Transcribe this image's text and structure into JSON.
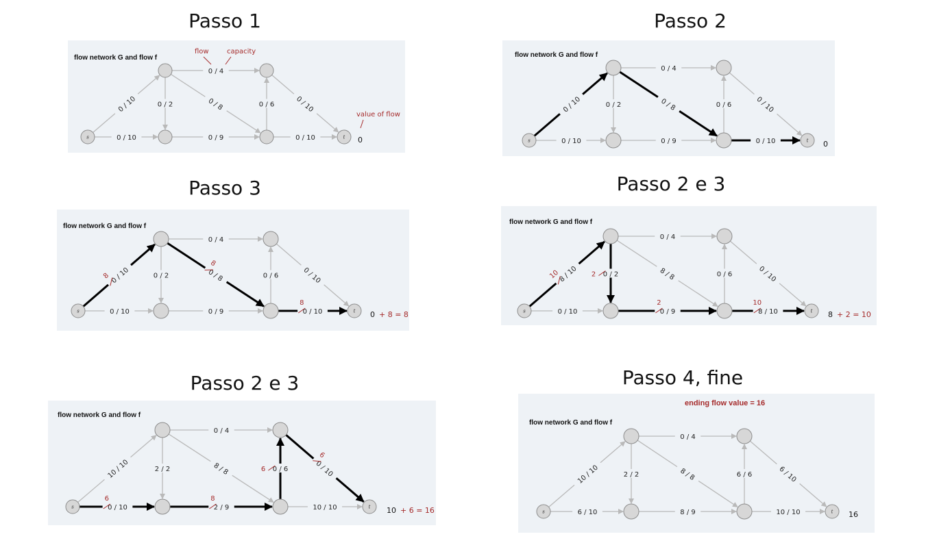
{
  "colors": {
    "panel_bg": "#eef2f6",
    "edge": "#b9b9b9",
    "path": "#000000",
    "red": "#a52a2a",
    "node_fill": "#d7d7d7",
    "node_stroke": "#8c8c8c"
  },
  "panel_title": "flow network G and flow f",
  "nodes": [
    {
      "id": "s",
      "label": "s"
    },
    {
      "id": "a",
      "label": ""
    },
    {
      "id": "b",
      "label": ""
    },
    {
      "id": "c",
      "label": ""
    },
    {
      "id": "d",
      "label": ""
    },
    {
      "id": "t",
      "label": "t"
    }
  ],
  "edges": [
    {
      "id": "sa",
      "from": "s",
      "to": "a"
    },
    {
      "id": "sb",
      "from": "s",
      "to": "b"
    },
    {
      "id": "ab",
      "from": "a",
      "to": "b"
    },
    {
      "id": "ac",
      "from": "a",
      "to": "c"
    },
    {
      "id": "ad",
      "from": "a",
      "to": "d"
    },
    {
      "id": "bd",
      "from": "b",
      "to": "d"
    },
    {
      "id": "dc",
      "from": "d",
      "to": "c"
    },
    {
      "id": "ct",
      "from": "c",
      "to": "t"
    },
    {
      "id": "dt",
      "from": "d",
      "to": "t"
    }
  ],
  "steps": [
    {
      "title": "Passo 1",
      "labels": {
        "sa": "0 / 10",
        "sb": "0 / 10",
        "ab": "0 / 2",
        "ac": "0 / 4",
        "ad": "0 / 8",
        "bd": "0 / 9",
        "dc": "0 / 6",
        "ct": "0 / 10",
        "dt": "0 / 10"
      },
      "path": [],
      "updates": {},
      "value": "0",
      "value_add": "",
      "annotations": {
        "flow": "flow",
        "capacity": "capacity",
        "value_of_flow": "value of flow"
      }
    },
    {
      "title": "Passo 2",
      "labels": {
        "sa": "0 / 10",
        "sb": "0 / 10",
        "ab": "0 / 2",
        "ac": "0 / 4",
        "ad": "0 / 8",
        "bd": "0 / 9",
        "dc": "0 / 6",
        "ct": "0 / 10",
        "dt": "0 / 10"
      },
      "path": [
        "sa",
        "ad",
        "dt"
      ],
      "updates": {},
      "value": "0",
      "value_add": ""
    },
    {
      "title": "Passo 3",
      "labels": {
        "sa": "0 / 10",
        "sb": "0 / 10",
        "ab": "0 / 2",
        "ac": "0 / 4",
        "ad": "0 / 8",
        "bd": "0 / 9",
        "dc": "0 / 6",
        "ct": "0 / 10",
        "dt": "0 / 10"
      },
      "path": [
        "sa",
        "ad",
        "dt"
      ],
      "updates": {
        "sa": "8",
        "ad": "8",
        "dt": "8"
      },
      "value": "0",
      "value_add": "+ 8 = 8"
    },
    {
      "title": "Passo 2 e 3",
      "labels": {
        "sa": "8 / 10",
        "sb": "0 / 10",
        "ab": "0 / 2",
        "ac": "0 / 4",
        "ad": "8 / 8",
        "bd": "0 / 9",
        "dc": "0 / 6",
        "ct": "0 / 10",
        "dt": "8 / 10"
      },
      "path": [
        "sa",
        "ab",
        "bd",
        "dt"
      ],
      "updates": {
        "sa": "10",
        "ab": "2",
        "bd": "2",
        "dt": "10"
      },
      "value": "8",
      "value_add": "+ 2 = 10"
    },
    {
      "title": "Passo 2 e 3",
      "labels": {
        "sa": "10 / 10",
        "sb": "0 / 10",
        "ab": "2 / 2",
        "ac": "0 / 4",
        "ad": "8 / 8",
        "bd": "2 / 9",
        "dc": "0 / 6",
        "ct": "0 / 10",
        "dt": "10 / 10"
      },
      "path": [
        "sb",
        "bd",
        "dc",
        "ct"
      ],
      "updates": {
        "sb": "6",
        "bd": "8",
        "dc": "6",
        "ct": "6"
      },
      "value": "10",
      "value_add": "+ 6 = 16"
    },
    {
      "title": "Passo 4, fine",
      "ending": "ending flow value = 16",
      "labels": {
        "sa": "10 / 10",
        "sb": "6 / 10",
        "ab": "2 / 2",
        "ac": "0 / 4",
        "ad": "8 / 8",
        "bd": "8 / 9",
        "dc": "6 / 6",
        "ct": "6 / 10",
        "dt": "10 / 10"
      },
      "path": [],
      "updates": {},
      "value": "16",
      "value_add": ""
    }
  ]
}
